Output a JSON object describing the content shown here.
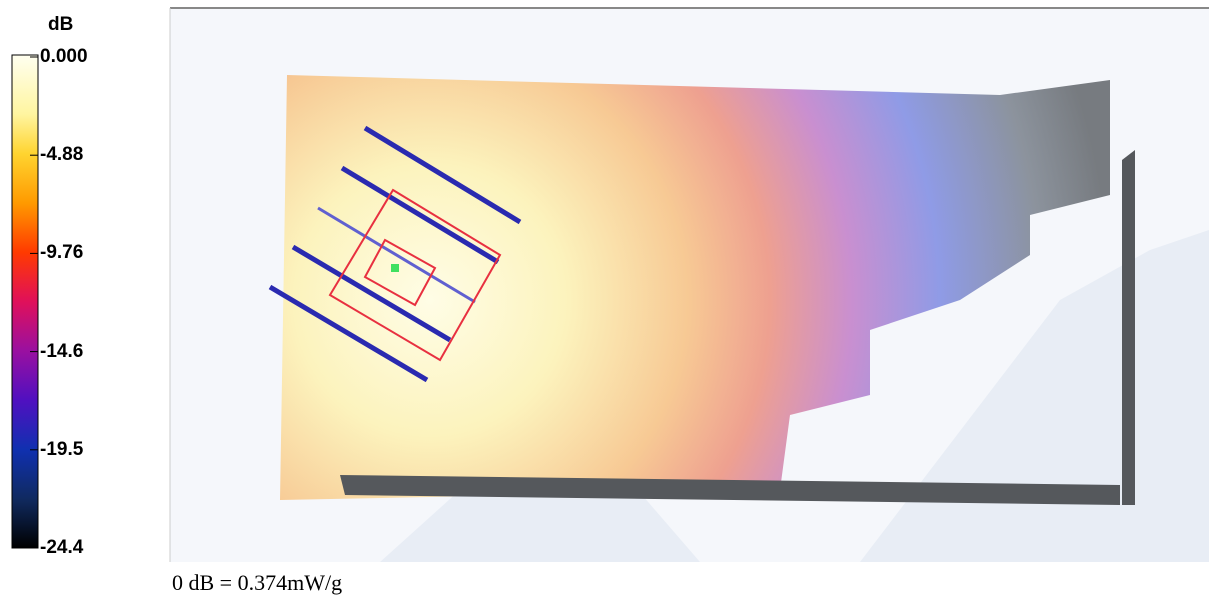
{
  "colorbar": {
    "unit": "dB",
    "labels": [
      "0.000",
      "-4.88",
      "-9.76",
      "-14.6",
      "-19.5",
      "-24.4"
    ]
  },
  "footnote": "0 dB = 0.374mW/g"
}
